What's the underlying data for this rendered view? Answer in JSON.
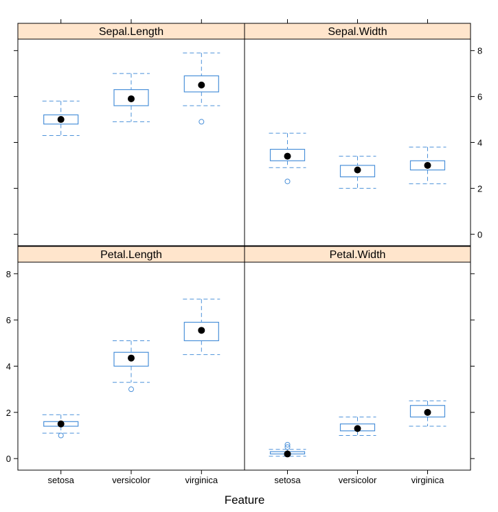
{
  "chart_data": {
    "type": "box",
    "xlabel": "Feature",
    "categories": [
      "setosa",
      "versicolor",
      "virginica"
    ],
    "ylim": [
      -0.5,
      8.5
    ],
    "yticks": [
      0,
      2,
      4,
      6,
      8
    ],
    "box_color": "#4a90d9",
    "median_color": "#000000",
    "strip_color": "#ffe5cc",
    "panels": [
      {
        "name": "Sepal.Length",
        "boxes": [
          {
            "category": "setosa",
            "min": 4.3,
            "q1": 4.8,
            "median": 5.0,
            "q3": 5.2,
            "max": 5.8,
            "outliers": []
          },
          {
            "category": "versicolor",
            "min": 4.9,
            "q1": 5.6,
            "median": 5.9,
            "q3": 6.3,
            "max": 7.0,
            "outliers": []
          },
          {
            "category": "virginica",
            "min": 5.6,
            "q1": 6.2,
            "median": 6.5,
            "q3": 6.9,
            "max": 7.9,
            "outliers": [
              4.9
            ]
          }
        ]
      },
      {
        "name": "Sepal.Width",
        "boxes": [
          {
            "category": "setosa",
            "min": 2.9,
            "q1": 3.2,
            "median": 3.4,
            "q3": 3.7,
            "max": 4.4,
            "outliers": [
              2.3
            ]
          },
          {
            "category": "versicolor",
            "min": 2.0,
            "q1": 2.5,
            "median": 2.8,
            "q3": 3.0,
            "max": 3.4,
            "outliers": []
          },
          {
            "category": "virginica",
            "min": 2.2,
            "q1": 2.8,
            "median": 3.0,
            "q3": 3.2,
            "max": 3.8,
            "outliers": []
          }
        ]
      },
      {
        "name": "Petal.Length",
        "boxes": [
          {
            "category": "setosa",
            "min": 1.1,
            "q1": 1.4,
            "median": 1.5,
            "q3": 1.6,
            "max": 1.9,
            "outliers": [
              1.0
            ]
          },
          {
            "category": "versicolor",
            "min": 3.3,
            "q1": 4.0,
            "median": 4.35,
            "q3": 4.6,
            "max": 5.1,
            "outliers": [
              3.0
            ]
          },
          {
            "category": "virginica",
            "min": 4.5,
            "q1": 5.1,
            "median": 5.55,
            "q3": 5.9,
            "max": 6.9,
            "outliers": []
          }
        ]
      },
      {
        "name": "Petal.Width",
        "boxes": [
          {
            "category": "setosa",
            "min": 0.1,
            "q1": 0.2,
            "median": 0.2,
            "q3": 0.3,
            "max": 0.4,
            "outliers": [
              0.5,
              0.6
            ]
          },
          {
            "category": "versicolor",
            "min": 1.0,
            "q1": 1.2,
            "median": 1.3,
            "q3": 1.5,
            "max": 1.8,
            "outliers": []
          },
          {
            "category": "virginica",
            "min": 1.4,
            "q1": 1.8,
            "median": 2.0,
            "q3": 2.3,
            "max": 2.5,
            "outliers": []
          }
        ]
      }
    ]
  }
}
